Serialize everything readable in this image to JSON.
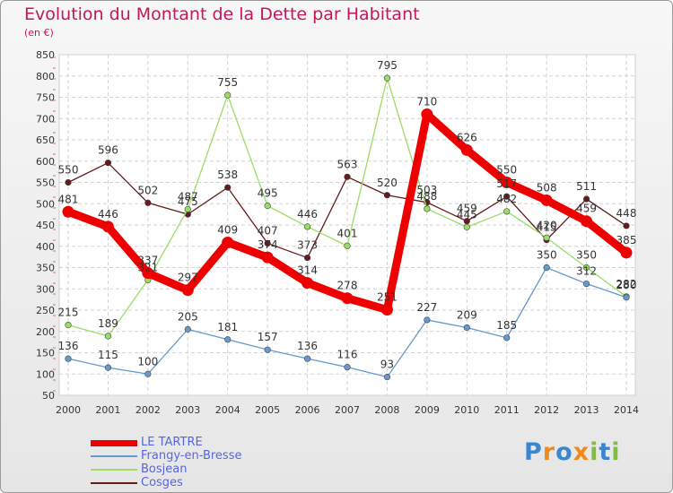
{
  "header": {
    "title": "Evolution du Montant de la Dette par Habitant",
    "subtitle": "(en €)"
  },
  "logo": {
    "text": "Proxiti"
  },
  "chart_data": {
    "type": "line",
    "x": [
      "2000",
      "2001",
      "2002",
      "2003",
      "2004",
      "2005",
      "2006",
      "2007",
      "2008",
      "2009",
      "2010",
      "2011",
      "2012",
      "2013",
      "2014"
    ],
    "ylim": [
      50,
      850
    ],
    "yticks": [
      50,
      100,
      150,
      200,
      250,
      300,
      350,
      400,
      450,
      500,
      550,
      600,
      650,
      700,
      750,
      800,
      850
    ],
    "grid": true,
    "legend_position": "bottom-left",
    "series": [
      {
        "name": "LE TARTRE",
        "color": "#ee0000",
        "values": [
          481,
          446,
          337,
          297,
          409,
          374,
          314,
          278,
          251,
          710,
          626,
          550,
          508,
          459,
          385
        ],
        "labels": [
          "481",
          "446",
          "337",
          "297",
          "409",
          "374",
          "314",
          "278",
          "251",
          "710",
          "626",
          "550",
          "508",
          "459",
          "385"
        ]
      },
      {
        "name": "Frangy-en-Bresse",
        "color": "#6699cc",
        "values": [
          136,
          115,
          100,
          205,
          181,
          157,
          136,
          116,
          93,
          227,
          209,
          185,
          350,
          312,
          280
        ],
        "labels": [
          "136",
          "115",
          "100",
          "205",
          "181",
          "157",
          "136",
          "116",
          "93",
          "227",
          "209",
          "185",
          "350",
          "312",
          "280"
        ]
      },
      {
        "name": "Bosjean",
        "color": "#99dd66",
        "values": [
          215,
          189,
          321,
          487,
          755,
          495,
          446,
          401,
          795,
          488,
          445,
          482,
          420,
          350,
          282
        ],
        "labels": [
          "215",
          "189",
          "321",
          "487",
          "755",
          "495",
          "446",
          "401",
          "795",
          "488",
          "445",
          "482",
          "420",
          "350",
          "282"
        ]
      },
      {
        "name": "Cosges",
        "color": "#661a1a",
        "values": [
          550,
          596,
          502,
          475,
          538,
          407,
          373,
          563,
          520,
          503,
          459,
          517,
          415,
          511,
          448
        ],
        "labels": [
          "550",
          "596",
          "502",
          "475",
          "538",
          "407",
          "373",
          "563",
          "520",
          "503",
          "459",
          "517",
          "415",
          "511",
          "448"
        ]
      }
    ]
  }
}
